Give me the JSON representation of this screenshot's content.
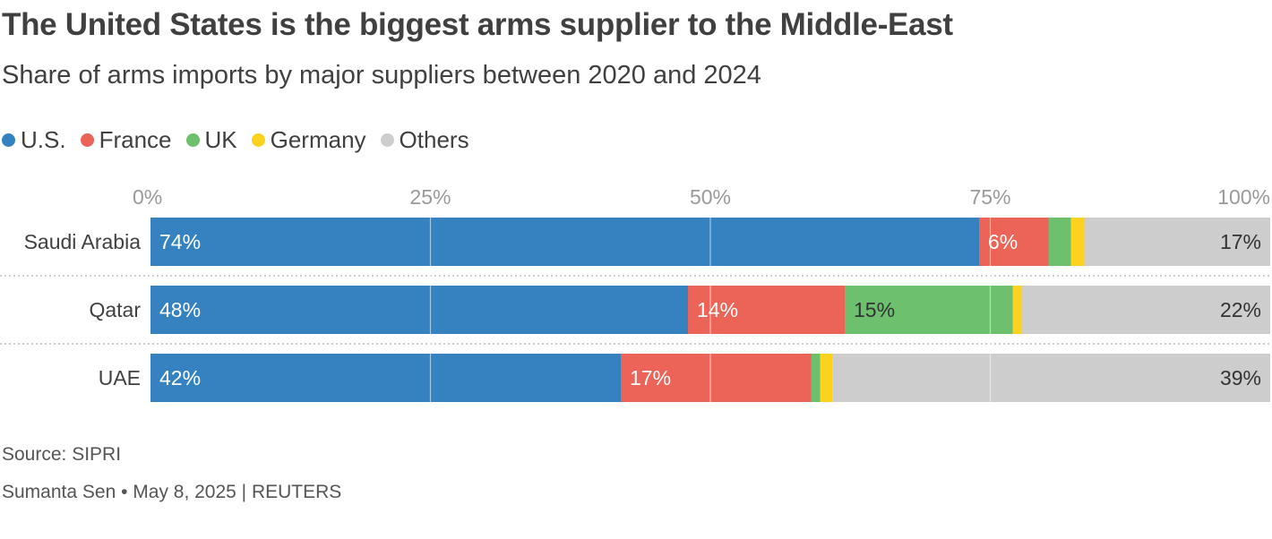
{
  "header": {
    "title": "The United States is the biggest arms supplier to the Middle-East",
    "subtitle": "Share of arms imports by major suppliers between 2020 and 2024"
  },
  "legend": [
    {
      "label": "U.S.",
      "color": "#3682c0"
    },
    {
      "label": "France",
      "color": "#ec6357"
    },
    {
      "label": "UK",
      "color": "#6cc06e"
    },
    {
      "label": "Germany",
      "color": "#fdd21f"
    },
    {
      "label": "Others",
      "color": "#cdcdcd"
    }
  ],
  "chart_data": {
    "type": "bar",
    "orientation": "horizontal",
    "stacked": true,
    "title": "The United States is the biggest arms supplier to the Middle-East",
    "subtitle": "Share of arms imports by major suppliers between 2020 and 2024",
    "categories": [
      "Saudi Arabia",
      "Qatar",
      "UAE"
    ],
    "series": [
      {
        "name": "U.S.",
        "color": "#3682c0",
        "values": [
          74,
          48,
          42
        ],
        "labels": [
          "74%",
          "48%",
          "42%"
        ],
        "label_color": "#ffffff"
      },
      {
        "name": "France",
        "color": "#ec6357",
        "values": [
          6.2,
          14,
          17
        ],
        "labels": [
          "6%",
          "14%",
          "17%"
        ],
        "label_color": "#ffffff"
      },
      {
        "name": "UK",
        "color": "#6cc06e",
        "values": [
          2,
          15,
          0.8
        ],
        "labels": [
          "",
          "15%",
          ""
        ],
        "label_color": "#333333"
      },
      {
        "name": "Germany",
        "color": "#fdd21f",
        "values": [
          1.2,
          0.8,
          1.1
        ],
        "labels": [
          "",
          "",
          ""
        ],
        "label_color": "#333333"
      },
      {
        "name": "Others",
        "color": "#cdcdcd",
        "values": [
          16.6,
          22.2,
          39.1
        ],
        "labels": [
          "17%",
          "22%",
          "39%"
        ],
        "label_color": "#333333",
        "label_align": "end"
      }
    ],
    "xlim": [
      0,
      100
    ],
    "ticks": [
      0,
      25,
      50,
      75,
      100
    ],
    "tick_labels": [
      "0%",
      "25%",
      "50%",
      "75%",
      "100%"
    ],
    "grid": true,
    "legend_position": "top-left"
  },
  "footer": {
    "source": "Source: SIPRI",
    "credit": "Sumanta Sen • May 8, 2025 | REUTERS"
  }
}
